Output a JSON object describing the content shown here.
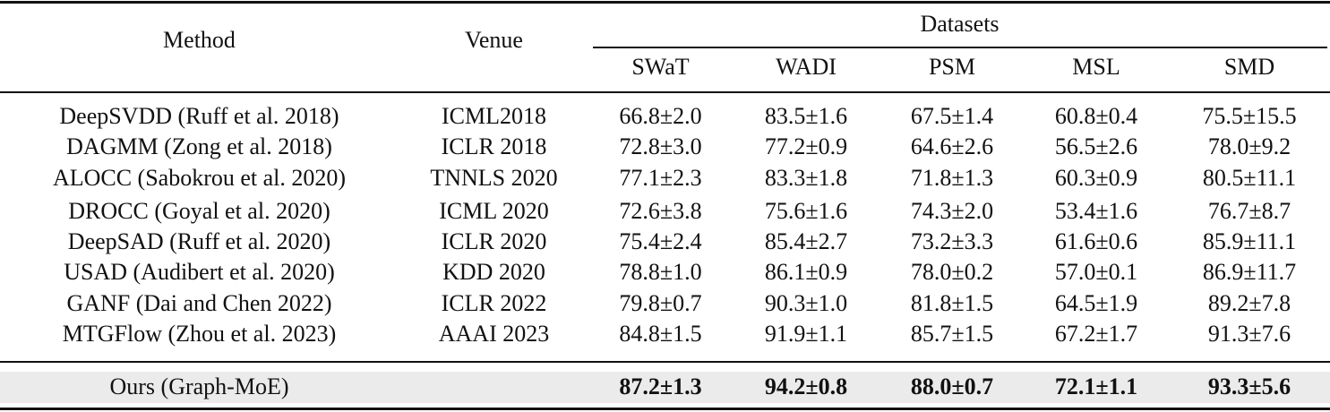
{
  "table": {
    "header": {
      "method": "Method",
      "venue": "Venue",
      "group": "Datasets",
      "datasets": [
        "SWaT",
        "WADI",
        "PSM",
        "MSL",
        "SMD"
      ]
    },
    "rows": [
      {
        "method": "DeepSVDD (Ruff et al. 2018)",
        "venue": "ICML2018",
        "values": [
          "66.8±2.0",
          "83.5±1.6",
          "67.5±1.4",
          "60.8±0.4",
          "75.5±15.5"
        ]
      },
      {
        "method": "DAGMM (Zong et al. 2018)",
        "venue": "ICLR 2018",
        "values": [
          "72.8±3.0",
          "77.2±0.9",
          "64.6±2.6",
          "56.5±2.6",
          "78.0±9.2"
        ]
      },
      {
        "method": "ALOCC (Sabokrou et al. 2020)",
        "venue": "TNNLS 2020",
        "values": [
          "77.1±2.3",
          "83.3±1.8",
          "71.8±1.3",
          "60.3±0.9",
          "80.5±11.1"
        ]
      },
      {
        "method": "DROCC (Goyal et al. 2020)",
        "venue": "ICML 2020",
        "values": [
          "72.6±3.8",
          "75.6±1.6",
          "74.3±2.0",
          "53.4±1.6",
          "76.7±8.7"
        ]
      },
      {
        "method": "DeepSAD (Ruff et al. 2020)",
        "venue": "ICLR 2020",
        "values": [
          "75.4±2.4",
          "85.4±2.7",
          "73.2±3.3",
          "61.6±0.6",
          "85.9±11.1"
        ]
      },
      {
        "method": "USAD (Audibert et al. 2020)",
        "venue": "KDD 2020",
        "values": [
          "78.8±1.0",
          "86.1±0.9",
          "78.0±0.2",
          "57.0±0.1",
          "86.9±11.7"
        ]
      },
      {
        "method": "GANF (Dai and Chen 2022)",
        "venue": "ICLR 2022",
        "values": [
          "79.8±0.7",
          "90.3±1.0",
          "81.8±1.5",
          "64.5±1.9",
          "89.2±7.8"
        ]
      },
      {
        "method": "MTGFlow (Zhou et al. 2023)",
        "venue": "AAAI 2023",
        "values": [
          "84.8±1.5",
          "91.9±1.1",
          "85.7±1.5",
          "67.2±1.7",
          "91.3±7.6"
        ]
      }
    ],
    "ours": {
      "method": "Ours (Graph-MoE)",
      "venue": "",
      "values": [
        "87.2±1.3",
        "94.2±0.8",
        "88.0±0.7",
        "72.1±1.1",
        "93.3±5.6"
      ]
    },
    "highlight_color": "#ebebeb"
  }
}
